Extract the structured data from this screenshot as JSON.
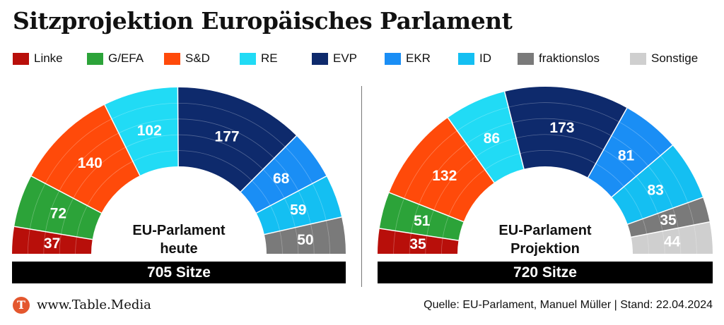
{
  "title": "Sitzprojektion Europäisches Parlament",
  "colors": {
    "Linke": "#b80f0a",
    "G/EFA": "#2ca339",
    "S&D": "#ff4a0a",
    "RE": "#21dbf5",
    "EVP": "#0e2a6c",
    "EKR": "#1a8ef5",
    "ID": "#14bff2",
    "fraktionslos": "#7a7a7a",
    "Sonstige": "#cfcfcf"
  },
  "legend": [
    "Linke",
    "G/EFA",
    "S&D",
    "RE",
    "EVP",
    "EKR",
    "ID",
    "fraktionslos",
    "Sonstige"
  ],
  "chart_data": [
    {
      "type": "pie",
      "subtype": "parliament-hemicycle",
      "center_label": [
        "EU-Parlament",
        "heute"
      ],
      "total_label": "705 Sitze",
      "total": 705,
      "series": [
        {
          "name": "Linke",
          "value": 37
        },
        {
          "name": "G/EFA",
          "value": 72
        },
        {
          "name": "S&D",
          "value": 140
        },
        {
          "name": "RE",
          "value": 102
        },
        {
          "name": "EVP",
          "value": 177
        },
        {
          "name": "EKR",
          "value": 68
        },
        {
          "name": "ID",
          "value": 59
        },
        {
          "name": "fraktionslos",
          "value": 50
        }
      ]
    },
    {
      "type": "pie",
      "subtype": "parliament-hemicycle",
      "center_label": [
        "EU-Parlament",
        "Projektion"
      ],
      "total_label": "720 Sitze",
      "total": 720,
      "series": [
        {
          "name": "Linke",
          "value": 35
        },
        {
          "name": "G/EFA",
          "value": 51
        },
        {
          "name": "S&D",
          "value": 132
        },
        {
          "name": "RE",
          "value": 86
        },
        {
          "name": "EVP",
          "value": 173
        },
        {
          "name": "EKR",
          "value": 81
        },
        {
          "name": "ID",
          "value": 83
        },
        {
          "name": "fraktionslos",
          "value": 35
        },
        {
          "name": "Sonstige",
          "value": 44
        }
      ]
    }
  ],
  "footer": {
    "logo_letter": "T",
    "site": "www.Table.Media",
    "source": "Quelle: EU-Parlament, Manuel Müller | Stand: 22.04.2024"
  }
}
